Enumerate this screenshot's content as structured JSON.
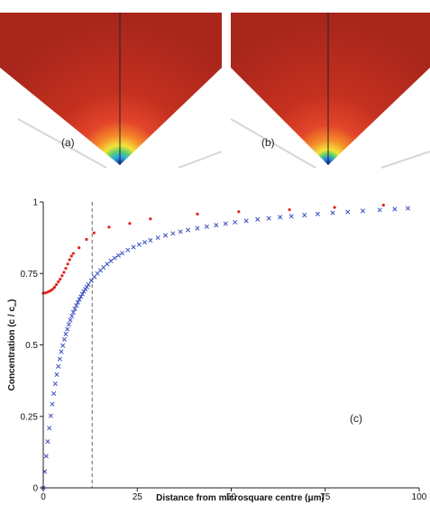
{
  "panel_labels": {
    "a": "(a)",
    "b": "(b)",
    "c": "(c)"
  },
  "colors": {
    "field": "#b3261d",
    "series_a": "#e0261e",
    "series_b": "#3a4fc0",
    "dashed_line": "#666666"
  },
  "chart_data": {
    "type": "scatter",
    "xlabel": "Distance from microsquare centre (μm)",
    "ylabel_main": "Concentration (c / c",
    "ylabel_sub": "∞",
    "ylabel_end": ")",
    "xlim": [
      0,
      100
    ],
    "ylim": [
      0,
      1
    ],
    "xticks": [
      0,
      25,
      50,
      75,
      100
    ],
    "xtick_labels": [
      "0",
      "25",
      "50",
      "75",
      "100"
    ],
    "yticks": [
      0,
      0.25,
      0.5,
      0.75,
      1
    ],
    "ytick_labels": [
      "0",
      "0.25",
      "0.5",
      "0.75",
      "1"
    ],
    "vline_x": 13,
    "series": [
      {
        "marker": "dot",
        "color": "#e0261e",
        "x": [
          0.0,
          0.5,
          1.0,
          1.5,
          2.0,
          2.5,
          3.0,
          3.5,
          4.0,
          4.5,
          5.0,
          5.5,
          6.0,
          6.5,
          7.0,
          7.5,
          8.0,
          9.5,
          11.5,
          13.5,
          17.5,
          23.0,
          28.5,
          41.0,
          52.0,
          65.5,
          77.5,
          90.5
        ],
        "y": [
          0.681,
          0.682,
          0.684,
          0.687,
          0.69,
          0.695,
          0.702,
          0.711,
          0.721,
          0.73,
          0.742,
          0.754,
          0.768,
          0.783,
          0.798,
          0.811,
          0.82,
          0.84,
          0.869,
          0.892,
          0.912,
          0.925,
          0.941,
          0.958,
          0.966,
          0.973,
          0.981,
          0.989
        ]
      },
      {
        "marker": "cross",
        "color": "#3a4fc0",
        "x": [
          0.0,
          0.4,
          0.8,
          1.2,
          1.6,
          2.0,
          2.4,
          2.8,
          3.2,
          3.6,
          4.0,
          4.4,
          4.8,
          5.2,
          5.6,
          6.0,
          6.4,
          6.8,
          7.2,
          7.6,
          8.0,
          8.4,
          8.8,
          9.2,
          9.6,
          10.0,
          10.4,
          10.8,
          11.2,
          11.6,
          12.0,
          12.8,
          13.6,
          14.4,
          15.2,
          16.0,
          17.0,
          18.0,
          19.0,
          20.0,
          21.0,
          22.5,
          24.0,
          25.5,
          27.0,
          28.5,
          30.5,
          32.5,
          34.5,
          36.5,
          38.5,
          41.0,
          43.5,
          46.0,
          48.5,
          51.0,
          54.0,
          57.0,
          60.0,
          63.0,
          66.0,
          69.5,
          73.0,
          77.0,
          81.0,
          85.0,
          89.5,
          93.5,
          97.0
        ],
        "y": [
          0.0,
          0.057,
          0.111,
          0.162,
          0.209,
          0.252,
          0.293,
          0.33,
          0.364,
          0.396,
          0.425,
          0.451,
          0.476,
          0.498,
          0.519,
          0.538,
          0.555,
          0.572,
          0.587,
          0.601,
          0.614,
          0.626,
          0.638,
          0.649,
          0.659,
          0.669,
          0.678,
          0.687,
          0.695,
          0.703,
          0.711,
          0.725,
          0.738,
          0.75,
          0.761,
          0.771,
          0.783,
          0.794,
          0.804,
          0.813,
          0.821,
          0.832,
          0.842,
          0.851,
          0.859,
          0.866,
          0.875,
          0.883,
          0.89,
          0.896,
          0.902,
          0.908,
          0.914,
          0.919,
          0.924,
          0.929,
          0.934,
          0.939,
          0.943,
          0.947,
          0.95,
          0.954,
          0.958,
          0.962,
          0.965,
          0.969,
          0.972,
          0.975,
          0.978
        ]
      }
    ]
  }
}
